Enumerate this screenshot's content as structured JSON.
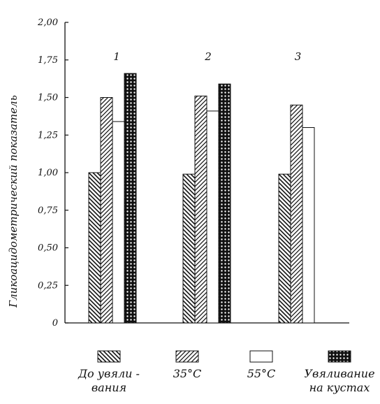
{
  "chart_data": {
    "type": "bar",
    "ylabel": "Гликоацидометрический показатель",
    "ylim": [
      0,
      2.0
    ],
    "yticks": [
      "0",
      "0,25",
      "0,50",
      "0,75",
      "1,00",
      "1,25",
      "1,50",
      "1,75",
      "2,00"
    ],
    "groups": [
      "1",
      "2",
      "3"
    ],
    "series": [
      {
        "name": "До увяливания",
        "legend_lines": [
          "До увяли -",
          "вания"
        ],
        "pattern": "diag-back",
        "values": [
          1.0,
          0.99,
          0.99
        ]
      },
      {
        "name": "35°С",
        "legend_lines": [
          "35°С"
        ],
        "pattern": "diag-fwd",
        "values": [
          1.5,
          1.51,
          1.45
        ]
      },
      {
        "name": "55°С",
        "legend_lines": [
          "55°С"
        ],
        "pattern": "blank",
        "values": [
          1.34,
          1.41,
          1.3
        ]
      },
      {
        "name": "Увяливание на кустах",
        "legend_lines": [
          "Увяливание",
          "на кустах"
        ],
        "pattern": "crosshatch",
        "values": [
          1.66,
          1.59,
          null
        ]
      }
    ],
    "grid": false,
    "legend_position": "bottom"
  }
}
